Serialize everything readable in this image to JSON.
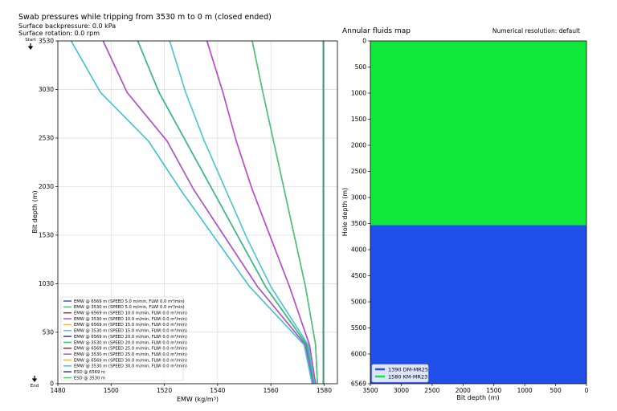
{
  "chart_data": [
    {
      "type": "line",
      "title": "Swab pressures while tripping from 3530 m to 0 m (closed ended)",
      "subtitle_lines": [
        "Surface backpressure: 0.0 kPa",
        "Surface rotation: 0.0 rpm"
      ],
      "xlabel": "EMW (kg/m³)",
      "ylabel": "Bit depth (m)",
      "xlim": [
        1480,
        1585
      ],
      "ylim": [
        3530,
        0
      ],
      "xticks": [
        1480,
        1500,
        1520,
        1540,
        1560,
        1580
      ],
      "yticks": [
        3530,
        3030,
        2530,
        2030,
        1530,
        1030,
        530,
        0
      ],
      "grid": true,
      "legend_position": "lower-left",
      "start_marker": "Start",
      "end_marker": "End",
      "series": [
        {
          "name": "EMW @ 6569 m (SPEED 5.0 m/min, FLWI 0.0 m³/min)",
          "color": "#3b52d6",
          "x": [
            1553,
            1557,
            1561,
            1565,
            1569,
            1573,
            1576.8,
            1577.5
          ],
          "y": [
            3530,
            3000,
            2500,
            2000,
            1500,
            1000,
            400,
            0
          ]
        },
        {
          "name": "EMW @ 3530 m (SPEED 5.0 m/min, FLWI 0.0 m³/min)",
          "color": "#4ec86b",
          "x": [
            1553,
            1557,
            1561,
            1565,
            1569,
            1573,
            1576.8,
            1577.5
          ],
          "y": [
            3530,
            3000,
            2500,
            2000,
            1500,
            1000,
            400,
            0
          ]
        },
        {
          "name": "EMW @ 6569 m (SPEED 10.0 m/min, FLWI 0.0 m³/min)",
          "color": "#c8202e",
          "x": [
            1536,
            1542,
            1547,
            1553,
            1560,
            1567,
            1574.5,
            1576.8
          ],
          "y": [
            3530,
            3000,
            2500,
            2000,
            1500,
            1000,
            400,
            0
          ]
        },
        {
          "name": "EMW @ 3530 m (SPEED 10.0 m/min, FLWI 0.0 m³/min)",
          "color": "#b24fd8",
          "x": [
            1536,
            1542,
            1547,
            1553,
            1560,
            1567,
            1574.5,
            1576.8
          ],
          "y": [
            3530,
            3000,
            2500,
            2000,
            1500,
            1000,
            400,
            0
          ]
        },
        {
          "name": "EMW @ 6569 m (SPEED 15.0 m/min, FLWI 0.0 m³/min)",
          "color": "#e8b84a",
          "x": [
            1522,
            1528,
            1535,
            1543,
            1551,
            1560,
            1574,
            1576.3
          ],
          "y": [
            3530,
            3000,
            2500,
            2000,
            1500,
            1000,
            400,
            0
          ]
        },
        {
          "name": "EMW @ 3530 m (SPEED 15.0 m/min, FLWI 0.0 m³/min)",
          "color": "#40c8e0",
          "x": [
            1522,
            1528,
            1535,
            1543,
            1551,
            1560,
            1574,
            1576.3
          ],
          "y": [
            3530,
            3000,
            2500,
            2000,
            1500,
            1000,
            400,
            0
          ]
        },
        {
          "name": "EMW @ 6569 m (SPEED 20.0 m/min, FLWI 0.0 m³/min)",
          "color": "#2a3fa8",
          "x": [
            1510,
            1518,
            1528,
            1538,
            1548,
            1558,
            1573.5,
            1576
          ],
          "y": [
            3530,
            3000,
            2500,
            2000,
            1500,
            1000,
            400,
            0
          ]
        },
        {
          "name": "EMW @ 3530 m (SPEED 20.0 m/min, FLWI 0.0 m³/min)",
          "color": "#33c073",
          "x": [
            1510,
            1518,
            1528,
            1538,
            1548,
            1558,
            1573.5,
            1576
          ],
          "y": [
            3530,
            3000,
            2500,
            2000,
            1500,
            1000,
            400,
            0
          ]
        },
        {
          "name": "EMW @ 6569 m (SPEED 25.0 m/min, FLWI 0.0 m³/min)",
          "color": "#b0202a",
          "x": [
            1497,
            1506,
            1521,
            1531,
            1543,
            1555,
            1573,
            1575.8
          ],
          "y": [
            3530,
            3000,
            2500,
            2000,
            1500,
            1000,
            400,
            0
          ]
        },
        {
          "name": "EMW @ 3530 m (SPEED 25.0 m/min, FLWI 0.0 m³/min)",
          "color": "#a855d0",
          "x": [
            1497,
            1506,
            1521,
            1531,
            1543,
            1555,
            1573,
            1575.8
          ],
          "y": [
            3530,
            3000,
            2500,
            2000,
            1500,
            1000,
            400,
            0
          ]
        },
        {
          "name": "EMW @ 6569 m (SPEED 30.0 m/min, FLWI 0.0 m³/min)",
          "color": "#e4b64c",
          "x": [
            1485,
            1496,
            1514,
            1526,
            1539,
            1552,
            1572.5,
            1575.5
          ],
          "y": [
            3530,
            3000,
            2500,
            2000,
            1500,
            1000,
            400,
            0
          ]
        },
        {
          "name": "EMW @ 3530 m (SPEED 30.0 m/min, FLWI 0.0 m³/min)",
          "color": "#36c4dd",
          "x": [
            1485,
            1496,
            1514,
            1526,
            1539,
            1552,
            1572.5,
            1575.5
          ],
          "y": [
            3530,
            3000,
            2500,
            2000,
            1500,
            1000,
            400,
            0
          ]
        },
        {
          "name": "ESD @ 6569 m",
          "color": "#2b3a9e",
          "x": [
            1579.7,
            1579.7
          ],
          "y": [
            3530,
            0
          ]
        },
        {
          "name": "ESD @ 3530 m",
          "color": "#4ccf5f",
          "x": [
            1579.9,
            1579.9
          ],
          "y": [
            3530,
            0
          ]
        }
      ]
    },
    {
      "type": "area",
      "title": "Annular fluids map",
      "annotation": "Numerical resolution: default",
      "xlabel": "Bit depth (m)",
      "ylabel": "Hole depth (m)",
      "xlim": [
        3500,
        0
      ],
      "ylim": [
        6569,
        0
      ],
      "xticks": [
        3500,
        3000,
        2500,
        2000,
        1500,
        1000,
        500,
        0
      ],
      "yticks": [
        0,
        500,
        1000,
        1500,
        2000,
        2500,
        3000,
        3500,
        4000,
        4500,
        5000,
        5500,
        6000,
        6569
      ],
      "legend_position": "lower-left",
      "fluids": [
        {
          "name": "1390 DM-MR25",
          "color": "#1f4fe8",
          "top": 3530,
          "bottom": 6569
        },
        {
          "name": "1580 KM-MR23",
          "color": "#10e83c",
          "top": 0,
          "bottom": 3530
        }
      ]
    }
  ]
}
